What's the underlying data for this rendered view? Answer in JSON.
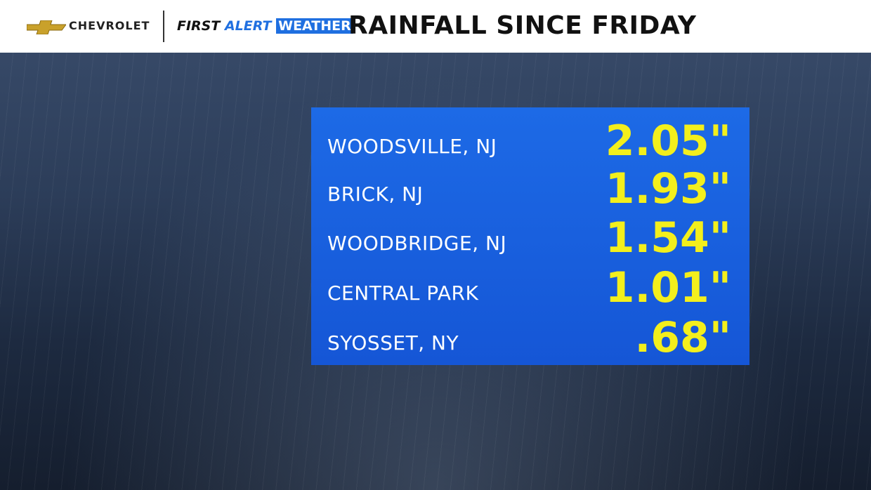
{
  "header": {
    "sponsor": "CHEVROLET",
    "brand": {
      "first": "FIRST",
      "alert": "ALERT",
      "weather": "WEATHER"
    },
    "title": "RAINFALL SINCE FRIDAY"
  },
  "table": {
    "rows": [
      [
        "WOODSVILLE, NJ",
        "2.05\""
      ],
      [
        "BRICK, NJ",
        "1.93\""
      ],
      [
        "WOODBRIDGE, NJ",
        "1.54\""
      ],
      [
        "CENTRAL PARK",
        "1.01\""
      ],
      [
        "SYOSSET, NY",
        ".68\""
      ]
    ]
  }
}
